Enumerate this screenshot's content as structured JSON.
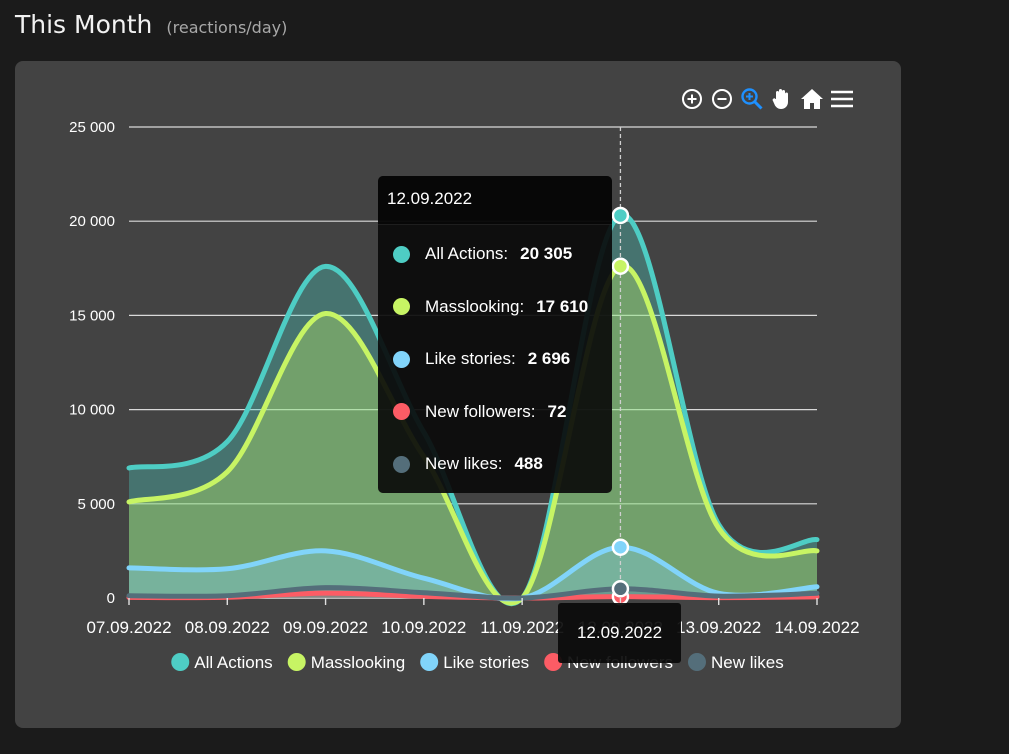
{
  "header": {
    "title": "This Month",
    "subtitle": "(reactions/day)"
  },
  "toolbar": {
    "icons": [
      "zoom-in-icon",
      "zoom-out-icon",
      "selection-zoom-icon",
      "pan-hand-icon",
      "home-reset-icon",
      "menu-icon"
    ]
  },
  "colors": {
    "accent": "#1e90ff"
  },
  "tooltip": {
    "date": "12.09.2022",
    "items": [
      {
        "label": "All Actions:",
        "value": "20 305",
        "color": "#4ecdc4"
      },
      {
        "label": "Masslooking:",
        "value": "17 610",
        "color": "#c7f464"
      },
      {
        "label": "Like stories:",
        "value": "2 696",
        "color": "#81d4fa"
      },
      {
        "label": "New followers:",
        "value": "72",
        "color": "#fc5c65"
      },
      {
        "label": "New likes:",
        "value": "488",
        "color": "#546e7a"
      }
    ]
  },
  "chart_data": {
    "type": "area",
    "title": "This Month",
    "subtitle": "(reactions/day)",
    "categories": [
      "07.09.2022",
      "08.09.2022",
      "09.09.2022",
      "10.09.2022",
      "11.09.2022",
      "12.09.2022",
      "13.09.2022",
      "14.09.2022"
    ],
    "yticks": [
      "0",
      "5 000",
      "10 000",
      "15 000",
      "20 000",
      "25 000"
    ],
    "ylim": [
      0,
      25000
    ],
    "highlight_category": "12.09.2022",
    "grid": true,
    "legend": "bottom",
    "series": [
      {
        "name": "All Actions",
        "color": "#4ecdc4",
        "values": [
          6900,
          8300,
          17600,
          8800,
          0,
          20305,
          3900,
          3100
        ]
      },
      {
        "name": "Masslooking",
        "color": "#c7f464",
        "values": [
          5100,
          6700,
          15100,
          7500,
          0,
          17610,
          3700,
          2500
        ]
      },
      {
        "name": "Like stories",
        "color": "#81d4fa",
        "values": [
          1600,
          1550,
          2500,
          1050,
          0,
          2696,
          250,
          600
        ]
      },
      {
        "name": "New followers",
        "color": "#fc5c65",
        "values": [
          30,
          40,
          260,
          90,
          0,
          72,
          20,
          60
        ]
      },
      {
        "name": "New likes",
        "color": "#546e7a",
        "values": [
          120,
          120,
          550,
          280,
          0,
          488,
          100,
          250
        ]
      }
    ]
  }
}
